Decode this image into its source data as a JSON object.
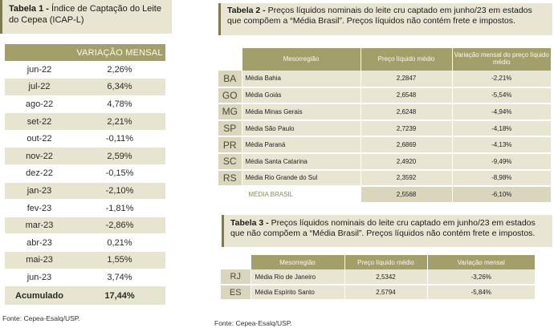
{
  "table1": {
    "title_bold": "Tabela 1 -",
    "title_rest": " Índice de Captação do Leite do Cepea (ICAP-L)",
    "header": "VARIAÇÃO MENSAL",
    "rows": [
      {
        "month": "jun-22",
        "value": "2,26%"
      },
      {
        "month": "jul-22",
        "value": "6,34%"
      },
      {
        "month": "ago-22",
        "value": "4,78%"
      },
      {
        "month": "set-22",
        "value": "2,21%"
      },
      {
        "month": "out-22",
        "value": "-0,11%"
      },
      {
        "month": "nov-22",
        "value": "2,59%"
      },
      {
        "month": "dez-22",
        "value": "-0,15%"
      },
      {
        "month": "jan-23",
        "value": "-2,10%"
      },
      {
        "month": "fev-23",
        "value": "-1,81%"
      },
      {
        "month": "mar-23",
        "value": "-2,86%"
      },
      {
        "month": "abr-23",
        "value": "0,21%"
      },
      {
        "month": "mai-23",
        "value": "1,55%"
      },
      {
        "month": "jun-23",
        "value": "3,74%"
      }
    ],
    "total_label": "Acumulado",
    "total_value": "17,44%",
    "source": "Fonte: Cepea-Esalq/USP."
  },
  "table2": {
    "title_bold": "Tabela 2 -",
    "title_rest": " Preços líquidos nominais do leite cru captado em junho/23 em estados que compõem a “Média Brasil”. Preços líquidos não contém frete e impostos.",
    "headers": {
      "region": "Mesorregião",
      "price": "Preço líquido médio",
      "variation": "Variação mensal do preço líquido médio"
    },
    "rows": [
      {
        "uf": "BA",
        "name": "Média Bahia",
        "price": "2,2847",
        "variation": "-2,21%"
      },
      {
        "uf": "GO",
        "name": "Média Goiás",
        "price": "2,6548",
        "variation": "-5,54%"
      },
      {
        "uf": "MG",
        "name": "Média Minas Gerais",
        "price": "2,6248",
        "variation": "-4,94%"
      },
      {
        "uf": "SP",
        "name": "Média São Paulo",
        "price": "2,7239",
        "variation": "-4,18%"
      },
      {
        "uf": "PR",
        "name": "Média Paraná",
        "price": "2,6869",
        "variation": "-4,13%"
      },
      {
        "uf": "SC",
        "name": "Média Santa Catarina",
        "price": "2,4920",
        "variation": "-9,49%"
      },
      {
        "uf": "RS",
        "name": "Média Rio Grande do Sul",
        "price": "2,3592",
        "variation": "-8,98%"
      }
    ],
    "total": {
      "name": "MÉDIA BRASIL",
      "price": "2,5568",
      "variation": "-6,10%"
    }
  },
  "table3": {
    "title_bold": "Tabela 3 -",
    "title_rest": " Preços líquidos nominais do leite cru captado em junho/23 em estados que não compõem a “Média Brasil”. Preços líquidos não contém frete e impostos.",
    "headers": {
      "region": "Mesorregião",
      "price": "Preço líquido médio",
      "variation": "Variação mensal"
    },
    "rows": [
      {
        "uf": "RJ",
        "name": "Média Rio de Janeiro",
        "price": "2,5342",
        "variation": "-3,26%"
      },
      {
        "uf": "ES",
        "name": "Média Espírito Santo",
        "price": "2,5794",
        "variation": "-5,84%"
      }
    ],
    "source": "Fonte: Cepea-Esalq/USP."
  }
}
